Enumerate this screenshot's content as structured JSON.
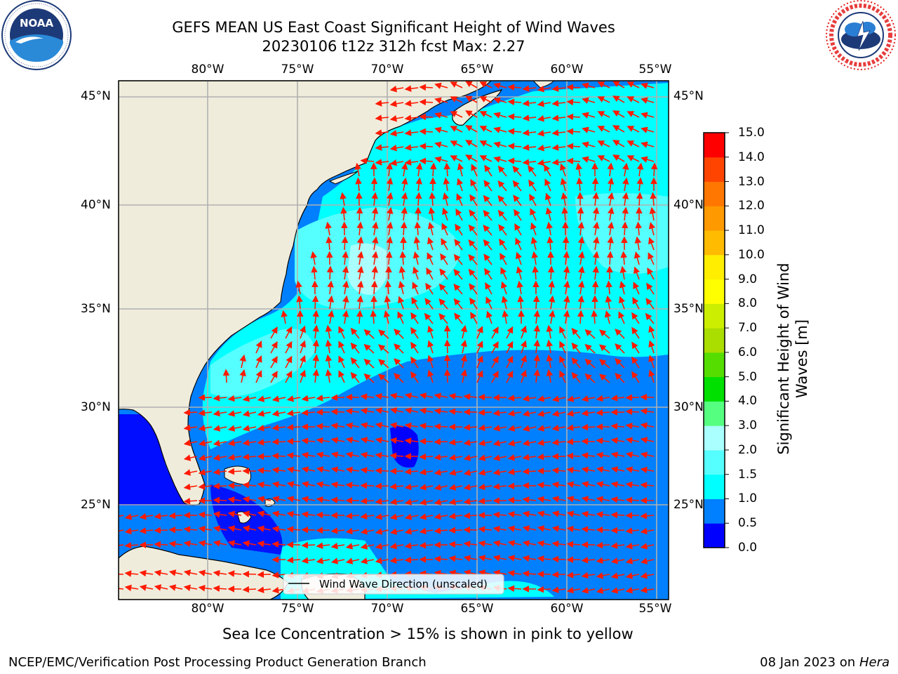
{
  "title": {
    "line1": "GEFS MEAN US East Coast Significant Height of Wind Waves",
    "line2": "20230106 t12z 312h fcst   Max: 2.27"
  },
  "logos": {
    "left": {
      "name": "noaa-logo",
      "text": "NOAA",
      "ring_text": "NATIONAL OCEANIC AND ATMOSPHERIC ADMINISTRATION · U.S. DEPARTMENT OF COMMERCE"
    },
    "right": {
      "name": "nws-logo",
      "ring_text": "NATIONAL WEATHER SERVICE"
    }
  },
  "map": {
    "lon_ticks": [
      "80°W",
      "75°W",
      "70°W",
      "65°W",
      "60°W",
      "55°W"
    ],
    "lat_ticks": [
      "45°N",
      "40°N",
      "35°N",
      "30°N",
      "25°N"
    ],
    "lon_values": [
      -80,
      -75,
      -70,
      -65,
      -60,
      -55
    ],
    "lat_values": [
      45,
      40,
      35,
      30,
      25
    ],
    "extent": {
      "lon": [
        -85,
        -54.5
      ],
      "lat": [
        20.5,
        45.8
      ]
    },
    "legend": "Wind Wave Direction (unscaled)",
    "colors": {
      "land": "#efecdc",
      "arrow": "#ff1a00",
      "grid": "#b0b0b0"
    }
  },
  "colorbar": {
    "label": "Significant Height of Wind Waves [m]",
    "label_line1": "Significant Height of Wind",
    "label_line2": "Waves [m]",
    "ticks": [
      "0.0",
      "0.5",
      "1.0",
      "1.5",
      "2.0",
      "3.0",
      "4.0",
      "5.0",
      "6.0",
      "7.0",
      "8.0",
      "9.0",
      "10.0",
      "11.0",
      "12.0",
      "13.0",
      "14.0",
      "15.0"
    ],
    "colors": [
      "#0000ff",
      "#0080ff",
      "#00ffff",
      "#55ffff",
      "#aaffff",
      "#55ff80",
      "#00e000",
      "#55dd00",
      "#aadd00",
      "#ccee00",
      "#ffff00",
      "#ffee00",
      "#ffbb00",
      "#ff9900",
      "#ff7700",
      "#ff4400",
      "#ff0000"
    ]
  },
  "chart_data": {
    "type": "heatmap",
    "title": "GEFS MEAN US East Coast Significant Height of Wind Waves",
    "subtitle": "20230106 t12z 312h fcst   Max: 2.27",
    "max_value": 2.27,
    "unit": "m",
    "colorbar_bounds": [
      0.0,
      0.5,
      1.0,
      1.5,
      2.0,
      3.0,
      4.0,
      5.0,
      6.0,
      7.0,
      8.0,
      9.0,
      10.0,
      11.0,
      12.0,
      13.0,
      14.0,
      15.0
    ],
    "lon_range": [
      -85,
      -54.5
    ],
    "lat_range": [
      20.5,
      45.8
    ]
  },
  "notes": {
    "sea_ice": "Sea Ice Concentration > 15% is shown in pink to yellow"
  },
  "footer": {
    "left": "NCEP/EMC/Verification Post Processing Product Generation Branch",
    "right_date": "08 Jan 2023 on",
    "right_host": "Hera"
  }
}
